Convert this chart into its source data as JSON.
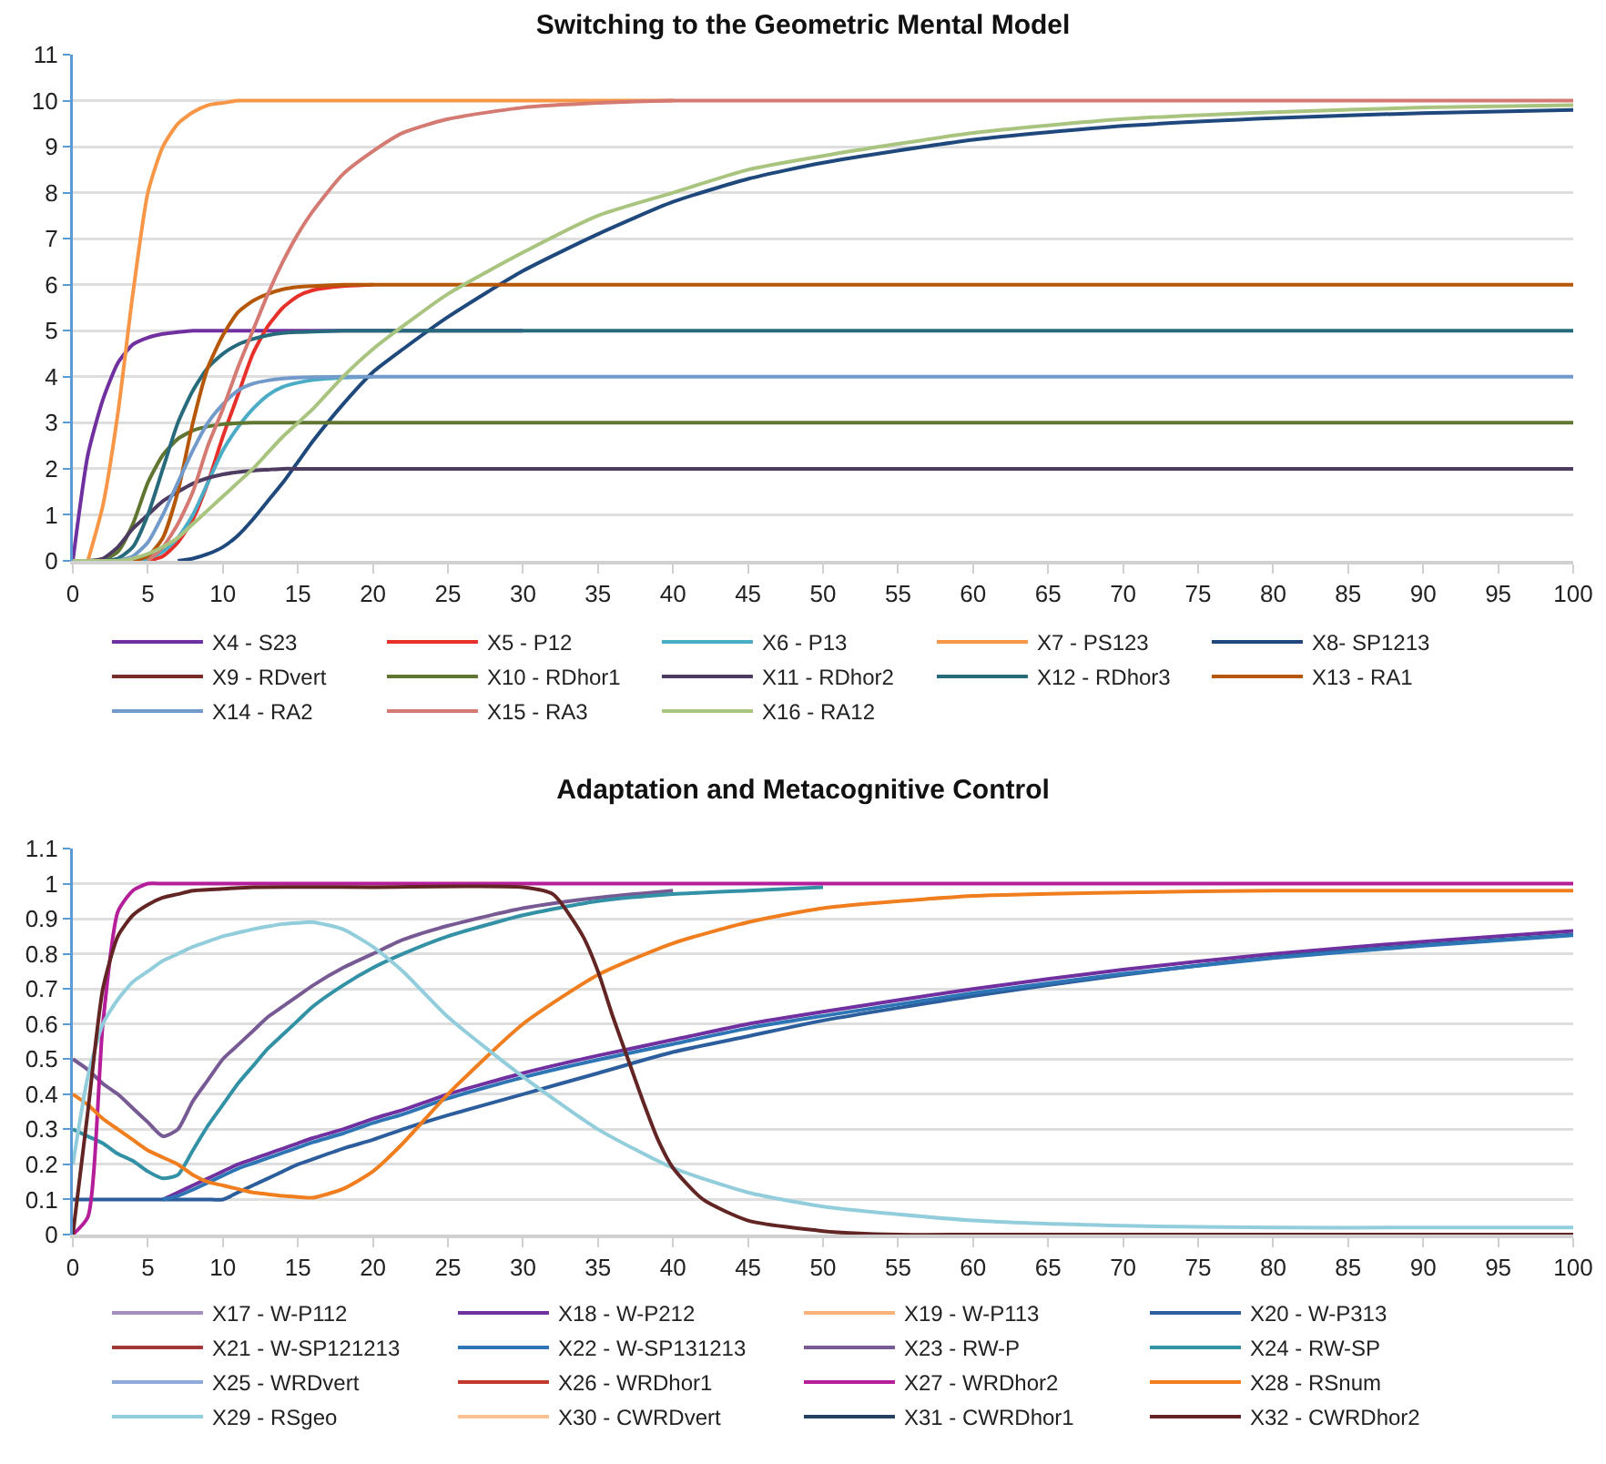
{
  "chart_data": [
    {
      "type": "line",
      "title": "Switching to the Geometric Mental Model",
      "x": [
        0,
        1,
        2,
        3,
        4,
        5,
        6,
        7,
        8,
        9,
        10,
        11,
        12,
        13,
        14,
        15,
        16,
        18,
        20,
        22,
        25,
        30,
        35,
        40,
        45,
        50,
        60,
        70,
        80,
        90,
        100
      ],
      "xlim": [
        0,
        100
      ],
      "xticks": [
        0,
        5,
        10,
        15,
        20,
        25,
        30,
        35,
        40,
        45,
        50,
        55,
        60,
        65,
        70,
        75,
        80,
        85,
        90,
        95,
        100
      ],
      "ylim": [
        0,
        11
      ],
      "yticks": [
        0,
        1,
        2,
        3,
        4,
        5,
        6,
        7,
        8,
        9,
        10,
        11
      ],
      "grid": "y",
      "legend": "bottom",
      "series": [
        {
          "name": "X4 - S23",
          "color": "#7030a0",
          "values": [
            0,
            2.3,
            3.5,
            4.3,
            4.7,
            4.85,
            4.93,
            4.97,
            5,
            5,
            5,
            5,
            5,
            5,
            5,
            5,
            5,
            5,
            5,
            5,
            5,
            5,
            null,
            null,
            null,
            null,
            null,
            null,
            null,
            null,
            null
          ]
        },
        {
          "name": "X5 - P12",
          "color": "#e8302a",
          "values": [
            null,
            null,
            null,
            null,
            null,
            0,
            0.1,
            0.4,
            0.9,
            1.7,
            2.7,
            3.6,
            4.5,
            5.1,
            5.5,
            5.75,
            5.88,
            5.97,
            6,
            null,
            null,
            null,
            null,
            null,
            null,
            null,
            null,
            null,
            null,
            null,
            null
          ]
        },
        {
          "name": "X6 - P13",
          "color": "#4bacc6",
          "values": [
            null,
            null,
            null,
            null,
            0,
            0.05,
            0.2,
            0.5,
            1,
            1.7,
            2.4,
            2.9,
            3.3,
            3.6,
            3.78,
            3.87,
            3.93,
            3.98,
            4,
            null,
            null,
            null,
            null,
            null,
            null,
            null,
            null,
            null,
            null,
            null,
            null
          ]
        },
        {
          "name": "X7 - PS123",
          "color": "#f79646",
          "values": [
            null,
            0,
            1.2,
            3.2,
            5.8,
            8,
            9,
            9.5,
            9.75,
            9.9,
            9.95,
            10,
            10,
            10,
            10,
            10,
            10,
            10,
            10,
            10,
            10,
            10,
            10,
            10,
            null,
            null,
            null,
            null,
            null,
            null,
            null
          ]
        },
        {
          "name": "X8- SP1213",
          "color": "#1f497d",
          "values": [
            null,
            null,
            null,
            null,
            null,
            null,
            null,
            0,
            0.05,
            0.15,
            0.3,
            0.55,
            0.9,
            1.3,
            1.7,
            2.15,
            2.6,
            3.4,
            4.1,
            4.6,
            5.3,
            6.3,
            7.1,
            7.8,
            8.3,
            8.65,
            9.15,
            9.45,
            9.62,
            9.73,
            9.8
          ]
        },
        {
          "name": "X9 - RDvert",
          "color": "#772c2a",
          "values": [
            null,
            null,
            null,
            null,
            null,
            null,
            null,
            null,
            null,
            null,
            null,
            null,
            null,
            null,
            null,
            null,
            null,
            null,
            null,
            null,
            null,
            null,
            null,
            null,
            null,
            null,
            null,
            null,
            null,
            null,
            null
          ]
        },
        {
          "name": "X10 - RDhor1",
          "color": "#5f7530",
          "values": [
            null,
            null,
            0,
            0.2,
            0.8,
            1.7,
            2.3,
            2.65,
            2.83,
            2.92,
            2.97,
            2.99,
            3,
            3,
            3,
            3,
            3,
            3,
            3,
            3,
            3,
            3,
            3,
            3,
            3,
            3,
            3,
            3,
            3,
            3,
            3
          ]
        },
        {
          "name": "X11 - RDhor2",
          "color": "#4d3b62",
          "values": [
            null,
            0,
            0.05,
            0.3,
            0.7,
            1,
            1.3,
            1.5,
            1.68,
            1.8,
            1.88,
            1.93,
            1.96,
            1.98,
            2,
            2,
            2,
            2,
            2,
            2,
            2,
            2,
            2,
            2,
            2,
            2,
            2,
            2,
            2,
            2,
            2
          ]
        },
        {
          "name": "X12 - RDhor3",
          "color": "#276a7c",
          "values": [
            null,
            null,
            0,
            0.05,
            0.3,
            1,
            2,
            3,
            3.7,
            4.2,
            4.5,
            4.7,
            4.82,
            4.9,
            4.95,
            4.97,
            4.98,
            5,
            5,
            5,
            5,
            5,
            5,
            5,
            5,
            5,
            5,
            5,
            5,
            5,
            5
          ]
        },
        {
          "name": "X13 - RA1",
          "color": "#b65708",
          "values": [
            null,
            null,
            null,
            null,
            0,
            0.1,
            0.5,
            1.5,
            3,
            4.2,
            4.9,
            5.4,
            5.65,
            5.8,
            5.9,
            5.95,
            5.97,
            6,
            6,
            6,
            6,
            6,
            6,
            6,
            6,
            6,
            6,
            6,
            6,
            6,
            6
          ]
        },
        {
          "name": "X14 - RA2",
          "color": "#729aca",
          "values": [
            null,
            null,
            null,
            0,
            0.1,
            0.4,
            1,
            1.7,
            2.4,
            3,
            3.4,
            3.7,
            3.85,
            3.92,
            3.96,
            3.98,
            3.99,
            4,
            4,
            4,
            4,
            4,
            4,
            4,
            4,
            4,
            4,
            4,
            4,
            4,
            4
          ]
        },
        {
          "name": "X15 - RA3",
          "color": "#d47a72",
          "values": [
            null,
            null,
            null,
            null,
            null,
            0,
            0.3,
            0.8,
            1.5,
            2.5,
            3.3,
            4.2,
            5,
            5.8,
            6.5,
            7.1,
            7.6,
            8.4,
            8.9,
            9.3,
            9.6,
            9.85,
            9.95,
            10,
            10,
            10,
            10,
            10,
            10,
            10,
            10
          ]
        },
        {
          "name": "X16 - RA12",
          "color": "#a9c47f",
          "values": [
            0,
            0,
            0,
            0,
            0.05,
            0.15,
            0.3,
            0.5,
            0.8,
            1.1,
            1.4,
            1.7,
            2,
            2.35,
            2.7,
            3,
            3.3,
            4,
            4.6,
            5.1,
            5.8,
            6.7,
            7.5,
            8,
            8.5,
            8.8,
            9.3,
            9.6,
            9.75,
            9.85,
            9.9
          ]
        }
      ]
    },
    {
      "type": "line",
      "title": "Adaptation and Metacognitive Control",
      "x": [
        0,
        1,
        2,
        3,
        4,
        5,
        6,
        7,
        8,
        9,
        10,
        11,
        12,
        13,
        14,
        15,
        16,
        18,
        20,
        22,
        25,
        30,
        35,
        40,
        45,
        50,
        60,
        70,
        80,
        90,
        100
      ],
      "xlim": [
        0,
        100
      ],
      "xticks": [
        0,
        5,
        10,
        15,
        20,
        25,
        30,
        35,
        40,
        45,
        50,
        55,
        60,
        65,
        70,
        75,
        80,
        85,
        90,
        95,
        100
      ],
      "ylim": [
        0,
        1.1
      ],
      "yticks": [
        0,
        0.1,
        0.2,
        0.3,
        0.4,
        0.5,
        0.6,
        0.7,
        0.8,
        0.9,
        1,
        1.1
      ],
      "grid": "y",
      "legend": "bottom",
      "series": [
        {
          "name": "X17 - W-P112",
          "color": "#a58dbf",
          "values": [
            null,
            null,
            null,
            null,
            null,
            null,
            null,
            null,
            null,
            null,
            null,
            null,
            null,
            null,
            null,
            null,
            null,
            null,
            null,
            null,
            null,
            null,
            null,
            null,
            null,
            null,
            null,
            null,
            null,
            null,
            null
          ]
        },
        {
          "name": "X18 - W-P212",
          "color": "#7030a0",
          "values": [
            null,
            null,
            null,
            null,
            null,
            null,
            0.1,
            0.12,
            0.14,
            0.16,
            0.18,
            0.2,
            0.215,
            0.23,
            0.245,
            0.26,
            0.275,
            0.3,
            0.33,
            0.355,
            0.4,
            0.46,
            0.51,
            0.555,
            0.6,
            0.635,
            0.7,
            0.755,
            0.8,
            0.835,
            0.865
          ]
        },
        {
          "name": "X19 - W-P113",
          "color": "#fab27a",
          "values": [
            null,
            null,
            null,
            null,
            null,
            null,
            null,
            null,
            null,
            null,
            null,
            null,
            null,
            null,
            null,
            null,
            null,
            null,
            null,
            null,
            null,
            null,
            null,
            null,
            null,
            null,
            null,
            null,
            null,
            null,
            null
          ]
        },
        {
          "name": "X20 - W-P313",
          "color": "#2c5d9c",
          "values": [
            0.1,
            0.1,
            0.1,
            0.1,
            0.1,
            0.1,
            0.1,
            0.1,
            0.1,
            0.1,
            0.1,
            0.12,
            0.14,
            0.16,
            0.18,
            0.2,
            0.215,
            0.245,
            0.27,
            0.3,
            0.34,
            0.4,
            0.46,
            0.52,
            0.565,
            0.61,
            0.68,
            0.74,
            0.79,
            0.825,
            0.855
          ]
        },
        {
          "name": "X21 - W-SP121213",
          "color": "#a13838",
          "values": [
            null,
            null,
            null,
            null,
            null,
            null,
            null,
            null,
            null,
            null,
            null,
            null,
            null,
            null,
            null,
            null,
            null,
            null,
            null,
            null,
            null,
            null,
            null,
            null,
            null,
            null,
            null,
            null,
            null,
            null,
            null
          ]
        },
        {
          "name": "X22 - W-SP131213",
          "color": "#2e75b6",
          "values": [
            null,
            null,
            null,
            null,
            null,
            null,
            0.1,
            0.11,
            0.128,
            0.148,
            0.168,
            0.188,
            0.203,
            0.218,
            0.233,
            0.248,
            0.263,
            0.288,
            0.318,
            0.343,
            0.388,
            0.448,
            0.498,
            0.543,
            0.588,
            0.623,
            0.688,
            0.743,
            0.788,
            0.823,
            0.853
          ]
        },
        {
          "name": "X23 - RW-P",
          "color": "#775a94",
          "values": [
            0.5,
            0.47,
            0.43,
            0.4,
            0.36,
            0.32,
            0.28,
            0.3,
            0.38,
            0.44,
            0.5,
            0.54,
            0.58,
            0.62,
            0.65,
            0.68,
            0.71,
            0.76,
            0.8,
            0.84,
            0.88,
            0.93,
            0.96,
            0.98,
            null,
            null,
            null,
            null,
            null,
            null,
            null
          ]
        },
        {
          "name": "X24 - RW-SP",
          "color": "#3391a6",
          "values": [
            0.3,
            0.28,
            0.26,
            0.23,
            0.21,
            0.18,
            0.16,
            0.17,
            0.24,
            0.31,
            0.37,
            0.43,
            0.48,
            0.53,
            0.57,
            0.61,
            0.65,
            0.71,
            0.76,
            0.8,
            0.85,
            0.91,
            0.95,
            0.97,
            0.98,
            0.99,
            null,
            null,
            null,
            null,
            null
          ]
        },
        {
          "name": "X25 - WRDvert",
          "color": "#8eaadb",
          "values": [
            null,
            null,
            null,
            null,
            null,
            null,
            null,
            null,
            null,
            null,
            null,
            null,
            null,
            null,
            null,
            null,
            null,
            null,
            null,
            null,
            null,
            null,
            null,
            null,
            null,
            null,
            null,
            null,
            null,
            null,
            null
          ]
        },
        {
          "name": "X26 - WRDhor1",
          "color": "#c0392b",
          "values": [
            null,
            null,
            null,
            null,
            null,
            null,
            null,
            null,
            null,
            null,
            null,
            null,
            null,
            null,
            null,
            null,
            null,
            null,
            null,
            null,
            null,
            null,
            null,
            null,
            null,
            null,
            null,
            null,
            null,
            null,
            null
          ]
        },
        {
          "name": "X27 - WRDhor2",
          "color": "#b41e9a",
          "values": [
            0,
            0.05,
            0.6,
            0.92,
            0.98,
            1,
            1,
            1,
            1,
            1,
            1,
            1,
            1,
            1,
            1,
            1,
            1,
            1,
            1,
            1,
            1,
            1,
            1,
            1,
            1,
            1,
            1,
            1,
            1,
            1,
            1
          ]
        },
        {
          "name": "X28 - RSnum",
          "color": "#f07d1e",
          "values": [
            0.4,
            0.37,
            0.33,
            0.3,
            0.27,
            0.24,
            0.22,
            0.2,
            0.17,
            0.15,
            0.14,
            0.13,
            0.12,
            0.115,
            0.11,
            0.107,
            0.105,
            0.13,
            0.18,
            0.26,
            0.4,
            0.6,
            0.74,
            0.83,
            0.89,
            0.93,
            0.965,
            0.975,
            0.98,
            0.98,
            0.98
          ]
        },
        {
          "name": "X29 - RSgeo",
          "color": "#92cddc",
          "values": [
            0.2,
            0.45,
            0.6,
            0.67,
            0.72,
            0.75,
            0.78,
            0.8,
            0.82,
            0.835,
            0.85,
            0.86,
            0.87,
            0.878,
            0.885,
            0.888,
            0.89,
            0.87,
            0.82,
            0.75,
            0.62,
            0.45,
            0.3,
            0.19,
            0.12,
            0.08,
            0.04,
            0.025,
            0.02,
            0.02,
            0.02
          ]
        },
        {
          "name": "X30 - CWRDvert",
          "color": "#fac090",
          "values": [
            null,
            null,
            null,
            null,
            null,
            null,
            null,
            null,
            null,
            null,
            null,
            null,
            null,
            null,
            null,
            null,
            null,
            null,
            null,
            null,
            null,
            null,
            null,
            null,
            null,
            null,
            null,
            null,
            null,
            null,
            null
          ]
        },
        {
          "name": "X31 - CWRDhor1",
          "color": "#254061",
          "values": [
            null,
            null,
            null,
            null,
            null,
            null,
            null,
            null,
            null,
            null,
            null,
            null,
            null,
            null,
            null,
            null,
            null,
            null,
            null,
            null,
            null,
            null,
            null,
            null,
            null,
            null,
            null,
            null,
            null,
            null,
            null
          ]
        },
        {
          "name": "X32 - CWRDhor2",
          "color": "#632523",
          "x": [
            0,
            1,
            2,
            3,
            4,
            5,
            6,
            7,
            8,
            10,
            12,
            20,
            30,
            32,
            34,
            35,
            36,
            37,
            38,
            39,
            40,
            42,
            45,
            50,
            55,
            60,
            70,
            80,
            90,
            100
          ],
          "values": [
            0,
            0.35,
            0.7,
            0.85,
            0.91,
            0.94,
            0.96,
            0.97,
            0.98,
            0.985,
            0.99,
            0.99,
            0.99,
            0.97,
            0.85,
            0.75,
            0.62,
            0.5,
            0.38,
            0.27,
            0.19,
            0.1,
            0.04,
            0.01,
            0,
            0,
            0,
            0,
            0,
            0
          ]
        }
      ]
    }
  ]
}
